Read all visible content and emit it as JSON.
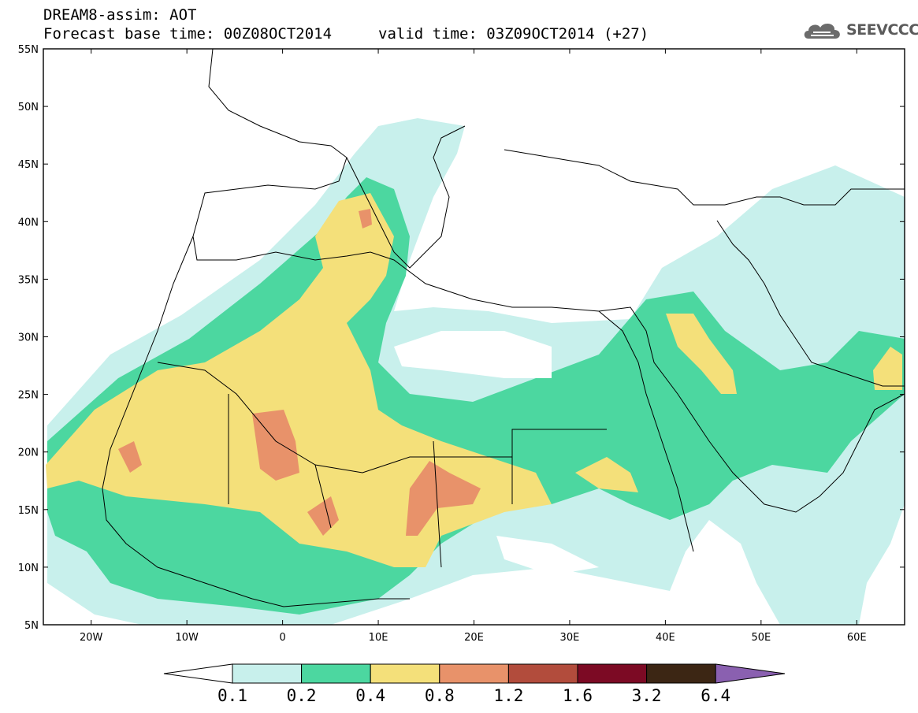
{
  "header": {
    "line1": "DREAM8-assim: AOT",
    "line2": "Forecast base time: 00Z08OCT2014",
    "valid": "valid time: 03Z09OCT2014 (+27)"
  },
  "logo": {
    "text": "SEEVCCC",
    "icon": "cloud-logo-icon"
  },
  "map": {
    "lon_range": [
      -25,
      65
    ],
    "lat_range": [
      5,
      55
    ],
    "lon_ticks": [
      {
        "v": -20,
        "label": "20W"
      },
      {
        "v": -10,
        "label": "10W"
      },
      {
        "v": 0,
        "label": "0"
      },
      {
        "v": 10,
        "label": "10E"
      },
      {
        "v": 20,
        "label": "20E"
      },
      {
        "v": 30,
        "label": "30E"
      },
      {
        "v": 40,
        "label": "40E"
      },
      {
        "v": 50,
        "label": "50E"
      },
      {
        "v": 60,
        "label": "60E"
      }
    ],
    "lat_ticks": [
      {
        "v": 55,
        "label": "55N"
      },
      {
        "v": 50,
        "label": "50N"
      },
      {
        "v": 45,
        "label": "45N"
      },
      {
        "v": 40,
        "label": "40N"
      },
      {
        "v": 35,
        "label": "35N"
      },
      {
        "v": 30,
        "label": "30N"
      },
      {
        "v": 25,
        "label": "25N"
      },
      {
        "v": 20,
        "label": "20N"
      },
      {
        "v": 15,
        "label": "15N"
      },
      {
        "v": 10,
        "label": "10N"
      },
      {
        "v": 5,
        "label": "5N"
      }
    ]
  },
  "colorbar": {
    "colors": [
      "#c8f0ec",
      "#4cd7a0",
      "#f4e07a",
      "#e8926a",
      "#b24c3c",
      "#7c0a24",
      "#3c2614"
    ],
    "over_color": "#8a60b0",
    "labels": [
      "0.1",
      "0.2",
      "0.4",
      "0.8",
      "1.2",
      "1.6",
      "3.2",
      "6.4"
    ]
  }
}
